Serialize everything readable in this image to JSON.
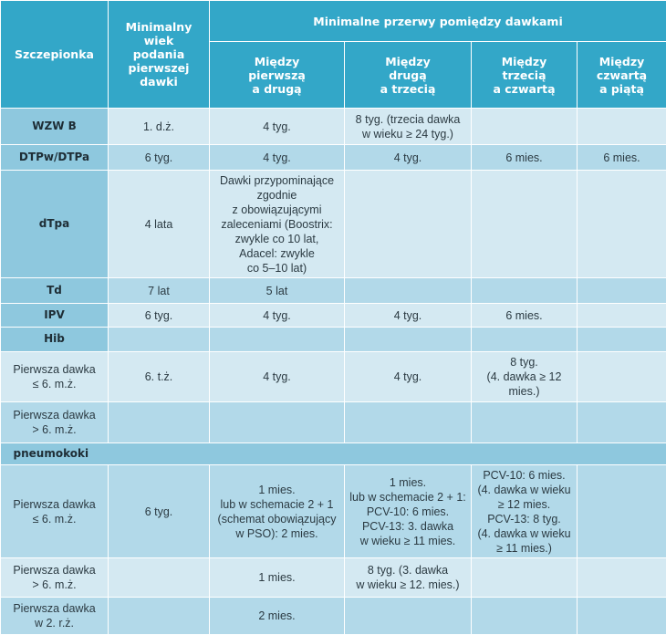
{
  "header": {
    "vaccine": "Szczepionka",
    "min_age": "Minimalny\nwiek\npodania\npierwszej\ndawki",
    "intervals_group": "Minimalne przerwy pomiędzy dawkami",
    "intervals": [
      "Między\npierwszą\na drugą",
      "Między\ndrugą\na trzecią",
      "Między\ntrzecią\na czwartą",
      "Między\nczwartą\na piątą"
    ]
  },
  "rows": [
    {
      "type": "vaccine",
      "style": "light",
      "h": 40,
      "label": "WZW B",
      "cells": [
        "1. d.ż.",
        "4 tyg.",
        "8 tyg. (trzecia dawka\nw wieku ≥ 24 tyg.)",
        "",
        ""
      ]
    },
    {
      "type": "vaccine",
      "style": "mid",
      "h": 28,
      "label": "DTPw/DTPa",
      "cells": [
        "6 tyg.",
        "4 tyg.",
        "4 tyg.",
        "6 mies.",
        "6 mies."
      ]
    },
    {
      "type": "vaccine",
      "style": "light",
      "h": 118,
      "label": "dTpa",
      "cells": [
        "4 lata",
        "Dawki przypominające\nzgodnie\nz obowiązującymi\nzaleceniami (Boostrix:\nzwykle co 10 lat,\nAdacel: zwykle\nco 5–10 lat)",
        "",
        "",
        ""
      ]
    },
    {
      "type": "vaccine",
      "style": "mid",
      "h": 28,
      "label": "Td",
      "cells": [
        "7 lat",
        "5 lat",
        "",
        "",
        ""
      ]
    },
    {
      "type": "vaccine",
      "style": "light",
      "h": 26,
      "label": "IPV",
      "cells": [
        "6 tyg.",
        "4 tyg.",
        "4 tyg.",
        "6 mies.",
        ""
      ]
    },
    {
      "type": "vaccine",
      "style": "mid",
      "h": 27,
      "label": "Hib",
      "cells": [
        "",
        "",
        "",
        "",
        ""
      ]
    },
    {
      "type": "sub",
      "style": "light",
      "h": 55,
      "label": "Pierwsza dawka\n≤ 6. m.ż.",
      "cells": [
        "6. t.ż.",
        "4 tyg.",
        "4 tyg.",
        "8 tyg.\n(4. dawka ≥ 12\nmies.)",
        ""
      ]
    },
    {
      "type": "sub",
      "style": "mid",
      "h": 45,
      "label": "Pierwsza dawka\n> 6. m.ż.",
      "cells": [
        "",
        "",
        "",
        "",
        ""
      ]
    },
    {
      "type": "band",
      "h": 24,
      "label": "pneumokoki"
    },
    {
      "type": "sub",
      "style": "mid",
      "h": 102,
      "label": "Pierwsza dawka\n≤ 6. m.ż.",
      "cells": [
        "6 tyg.",
        "1 mies.\nlub w schemacie 2 + 1\n(schemat obowiązujący\nw PSO): 2 mies.",
        "1 mies.\nlub w schemacie 2 + 1:\nPCV-10: 6 mies.\nPCV-13: 3. dawka\nw wieku ≥ 11 mies.",
        "PCV-10: 6 mies.\n(4. dawka w wieku\n≥ 12 mies.\nPCV-13: 8 tyg.\n(4. dawka w wieku\n≥ 11 mies.)",
        ""
      ]
    },
    {
      "type": "sub",
      "style": "light",
      "h": 43,
      "label": "Pierwsza dawka\n> 6. m.ż.",
      "cells": [
        "",
        "1 mies.",
        "8 tyg. (3. dawka\nw wieku ≥ 12. mies.)",
        "",
        ""
      ]
    },
    {
      "type": "sub",
      "style": "mid",
      "h": 41,
      "label": "Pierwsza dawka\nw 2. r.ż.",
      "cells": [
        "",
        "2 mies.",
        "",
        "",
        ""
      ]
    }
  ]
}
